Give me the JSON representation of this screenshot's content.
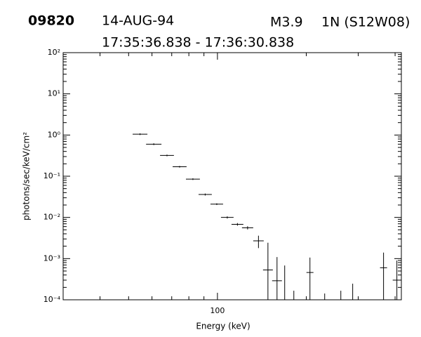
{
  "header": {
    "id": "09820",
    "date": "14-AUG-94",
    "class": "M3.9",
    "importance": "1N (S12W08)",
    "interval": "17:35:36.838 - 17:36:30.838"
  },
  "chart_data": {
    "type": "errorbar",
    "xlabel": "Energy (keV)",
    "ylabel": "photons/sec/keV/cm²",
    "xscale": "log",
    "yscale": "log",
    "minor_ticks": true,
    "xlim": [
      30,
      420
    ],
    "ylim": [
      0.0001,
      100
    ],
    "xticks": [
      100
    ],
    "yticks": [
      {
        "value": 0.0001,
        "label": "10⁻⁴"
      },
      {
        "value": 0.001,
        "label": "10⁻³"
      },
      {
        "value": 0.01,
        "label": "10⁻²"
      },
      {
        "value": 0.1,
        "label": "10⁻¹"
      },
      {
        "value": 1,
        "label": "10⁰"
      },
      {
        "value": 10,
        "label": "10¹"
      },
      {
        "value": 100,
        "label": "10²"
      }
    ],
    "color": "#000000",
    "series": [
      {
        "x_low": [
          51.6,
          57.3,
          63.9,
          70.5,
          78.2,
          86.3,
          94.7,
          102.8,
          111.6,
          121.1,
          132.2,
          142.7,
          153.2,
          200.3,
          355.6,
          392.6
        ],
        "x_high": [
          57.9,
          64.6,
          71.2,
          78.6,
          87.2,
          95.7,
          104.5,
          113.4,
          122.4,
          132.2,
          143.5,
          154.1,
          165.4,
          211.5,
          375.7,
          419
        ],
        "values": [
          1.05,
          0.6,
          0.32,
          0.17,
          0.085,
          0.036,
          0.021,
          0.01,
          0.0068,
          0.0056,
          0.0027,
          0.00053,
          0.00029,
          0.00046,
          0.0006,
          0.0003
        ],
        "errors": [
          0.05,
          0.03,
          0.015,
          0.008,
          0.004,
          0.002,
          0.001,
          0.0006,
          0.0005,
          0.0005,
          0.0009,
          0.0019,
          0.0008,
          0.0006,
          0.0008,
          0.0006
        ]
      }
    ],
    "limits": {
      "x": [
        169,
        181.5,
        230.9,
        261.9,
        287.3
      ],
      "values": [
        0.00068,
        0.000166,
        0.000142,
        0.000166,
        0.000246
      ]
    }
  }
}
